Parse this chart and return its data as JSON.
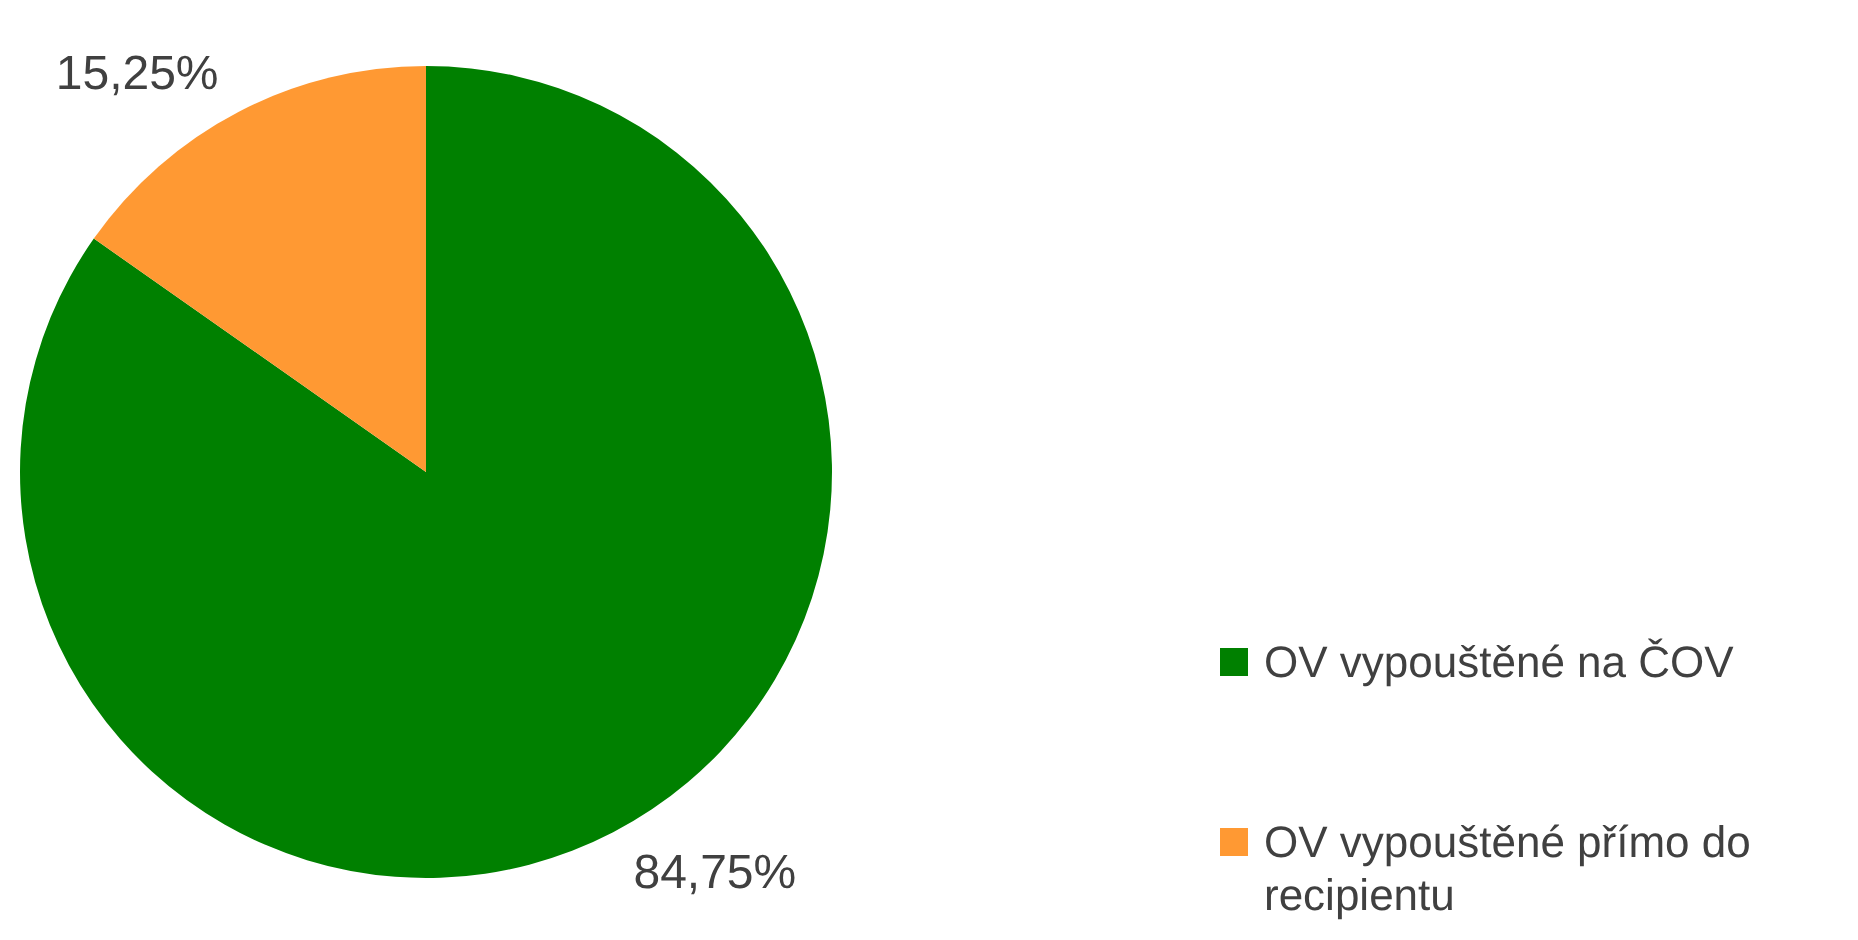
{
  "chart_data": {
    "type": "pie",
    "categories": [
      "OV vypouštěné na ČOV",
      "OV vypouštěné přímo do recipientu"
    ],
    "values": [
      84.75,
      15.25
    ],
    "colors": [
      "#008000",
      "#ff9933"
    ],
    "value_labels": [
      "84,75%",
      "15,25%"
    ],
    "legend": "right"
  }
}
